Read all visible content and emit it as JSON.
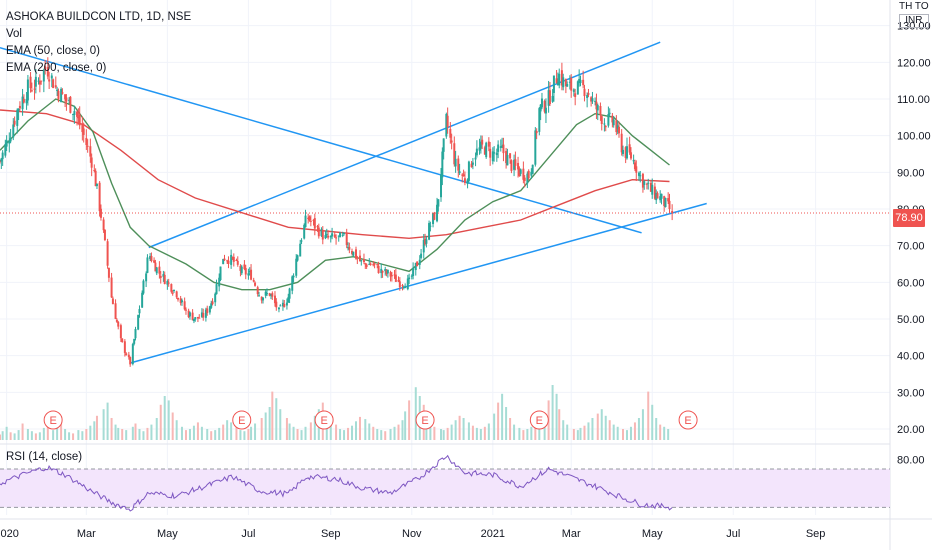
{
  "legend": {
    "symbol": "ASHOKA BUILDCON LTD, 1D, NSE",
    "vol": "Vol",
    "ema50": "EMA (50, close, 0)",
    "ema200": "EMA (200, close, 0)"
  },
  "currency": {
    "top": "TH TO",
    "box": "INR"
  },
  "last_price": "78.90",
  "rsi_title": "RSI (14, close)",
  "colors": {
    "up": "#26a69a",
    "down": "#ef5350",
    "ema50": "#4e8f5a",
    "ema200": "#e04b4b",
    "trendline": "#2196f3",
    "rsi": "#7e57c2",
    "rsi_band": "#f3e5fc",
    "last_line": "#ef5350"
  },
  "chart_data": [
    {
      "type": "candlestick",
      "ylim": [
        17,
        137
      ],
      "yticks": [
        "130.00",
        "120.00",
        "110.00",
        "100.00",
        "90.00",
        "80.00",
        "70.00",
        "60.00",
        "50.00",
        "40.00",
        "30.00",
        "20.00"
      ],
      "ytick_values": [
        130,
        120,
        110,
        100,
        90,
        80,
        70,
        60,
        50,
        40,
        30,
        20
      ],
      "xticks": [
        "2020",
        "Mar",
        "May",
        "Jul",
        "Sep",
        "Nov",
        "2021",
        "Mar",
        "May",
        "Jul",
        "Sep"
      ],
      "xtick_dates": [
        "2020-01-01",
        "2020-03-01",
        "2020-05-01",
        "2020-07-01",
        "2020-09-01",
        "2020-11-01",
        "2021-01-01",
        "2021-03-01",
        "2021-05-01",
        "2021-07-01",
        "2021-09-01"
      ],
      "x_range": [
        "2019-12-27",
        "2021-10-27"
      ],
      "close_series": [
        [
          "2019-12-27",
          93
        ],
        [
          "2020-01-03",
          100
        ],
        [
          "2020-01-10",
          108
        ],
        [
          "2020-01-17",
          113
        ],
        [
          "2020-01-24",
          114
        ],
        [
          "2020-01-31",
          119
        ],
        [
          "2020-02-07",
          113
        ],
        [
          "2020-02-14",
          110
        ],
        [
          "2020-02-21",
          107
        ],
        [
          "2020-02-28",
          100
        ],
        [
          "2020-03-06",
          92
        ],
        [
          "2020-03-13",
          76
        ],
        [
          "2020-03-20",
          56
        ],
        [
          "2020-03-27",
          44
        ],
        [
          "2020-04-03",
          38
        ],
        [
          "2020-04-10",
          53
        ],
        [
          "2020-04-17",
          68
        ],
        [
          "2020-04-24",
          63
        ],
        [
          "2020-05-01",
          60
        ],
        [
          "2020-05-08",
          57
        ],
        [
          "2020-05-15",
          52
        ],
        [
          "2020-05-22",
          50
        ],
        [
          "2020-05-29",
          51
        ],
        [
          "2020-06-05",
          56
        ],
        [
          "2020-06-12",
          67
        ],
        [
          "2020-06-19",
          66
        ],
        [
          "2020-06-26",
          63
        ],
        [
          "2020-07-03",
          62
        ],
        [
          "2020-07-10",
          56
        ],
        [
          "2020-07-17",
          57
        ],
        [
          "2020-07-24",
          52
        ],
        [
          "2020-07-31",
          56
        ],
        [
          "2020-08-07",
          68
        ],
        [
          "2020-08-14",
          78
        ],
        [
          "2020-08-21",
          75
        ],
        [
          "2020-08-28",
          72
        ],
        [
          "2020-09-04",
          72
        ],
        [
          "2020-09-11",
          72
        ],
        [
          "2020-09-18",
          68
        ],
        [
          "2020-09-25",
          65
        ],
        [
          "2020-10-02",
          65
        ],
        [
          "2020-10-09",
          63
        ],
        [
          "2020-10-16",
          62
        ],
        [
          "2020-10-23",
          60
        ],
        [
          "2020-10-30",
          60
        ],
        [
          "2020-11-06",
          66
        ],
        [
          "2020-11-13",
          74
        ],
        [
          "2020-11-20",
          80
        ],
        [
          "2020-11-27",
          104
        ],
        [
          "2020-12-04",
          92
        ],
        [
          "2020-12-11",
          88
        ],
        [
          "2020-12-18",
          95
        ],
        [
          "2020-12-25",
          97
        ],
        [
          "2021-01-01",
          95
        ],
        [
          "2021-01-08",
          96
        ],
        [
          "2021-01-15",
          92
        ],
        [
          "2021-01-22",
          90
        ],
        [
          "2021-01-29",
          89
        ],
        [
          "2021-02-05",
          107
        ],
        [
          "2021-02-12",
          110
        ],
        [
          "2021-02-19",
          117
        ],
        [
          "2021-02-26",
          113
        ],
        [
          "2021-03-05",
          113
        ],
        [
          "2021-03-12",
          113
        ],
        [
          "2021-03-19",
          108
        ],
        [
          "2021-03-26",
          104
        ],
        [
          "2021-04-02",
          104
        ],
        [
          "2021-04-09",
          96
        ],
        [
          "2021-04-16",
          94
        ],
        [
          "2021-04-23",
          88
        ],
        [
          "2021-04-30",
          85
        ],
        [
          "2021-05-07",
          83
        ],
        [
          "2021-05-14",
          80
        ],
        [
          "2021-05-17",
          78.9
        ]
      ],
      "ema50_series": [
        [
          "2019-12-27",
          96
        ],
        [
          "2020-01-17",
          104
        ],
        [
          "2020-02-07",
          110
        ],
        [
          "2020-02-21",
          108
        ],
        [
          "2020-03-06",
          101
        ],
        [
          "2020-03-20",
          87
        ],
        [
          "2020-04-03",
          75
        ],
        [
          "2020-04-17",
          70
        ],
        [
          "2020-05-15",
          65
        ],
        [
          "2020-06-05",
          60
        ],
        [
          "2020-06-26",
          58
        ],
        [
          "2020-07-17",
          58
        ],
        [
          "2020-08-07",
          60
        ],
        [
          "2020-08-28",
          66
        ],
        [
          "2020-09-18",
          67
        ],
        [
          "2020-10-09",
          65
        ],
        [
          "2020-10-30",
          63
        ],
        [
          "2020-11-20",
          69
        ],
        [
          "2020-12-11",
          77
        ],
        [
          "2021-01-01",
          82
        ],
        [
          "2021-01-22",
          85
        ],
        [
          "2021-02-12",
          94
        ],
        [
          "2021-03-05",
          103
        ],
        [
          "2021-03-19",
          106
        ],
        [
          "2021-04-02",
          105
        ],
        [
          "2021-04-16",
          100
        ],
        [
          "2021-04-30",
          96
        ],
        [
          "2021-05-14",
          92
        ]
      ],
      "ema200_series": [
        [
          "2019-12-27",
          107
        ],
        [
          "2020-01-31",
          106
        ],
        [
          "2020-02-28",
          103
        ],
        [
          "2020-03-27",
          96
        ],
        [
          "2020-04-24",
          88
        ],
        [
          "2020-05-22",
          83
        ],
        [
          "2020-06-26",
          79
        ],
        [
          "2020-07-31",
          75
        ],
        [
          "2020-08-28",
          74
        ],
        [
          "2020-09-25",
          73
        ],
        [
          "2020-10-30",
          72
        ],
        [
          "2020-11-27",
          73
        ],
        [
          "2020-12-25",
          75
        ],
        [
          "2021-01-22",
          77
        ],
        [
          "2021-02-19",
          81
        ],
        [
          "2021-03-19",
          85
        ],
        [
          "2021-04-16",
          88
        ],
        [
          "2021-05-14",
          87.5
        ]
      ],
      "trendlines": [
        {
          "from": [
            "2019-12-27",
            124
          ],
          "to": [
            "2021-04-23",
            73.5
          ]
        },
        {
          "from": [
            "2020-04-03",
            38
          ],
          "to": [
            "2021-06-11",
            81.5
          ]
        },
        {
          "from": [
            "2020-04-17",
            69.5
          ],
          "to": [
            "2021-05-07",
            125.5
          ]
        }
      ],
      "volume": {
        "ylim": [
          0,
          100
        ],
        "values": [
          5,
          8,
          12,
          7,
          6,
          9,
          15,
          10,
          8,
          6,
          7,
          11,
          14,
          9,
          12,
          18,
          10,
          7,
          6,
          9,
          8,
          10,
          13,
          17,
          22,
          28,
          34,
          20,
          14,
          11,
          10,
          9,
          12,
          15,
          10,
          8,
          11,
          14,
          20,
          32,
          40,
          36,
          25,
          18,
          12,
          9,
          10,
          13,
          16,
          12,
          10,
          8,
          9,
          11,
          14,
          18,
          16,
          12,
          9,
          8,
          10,
          12,
          15,
          20,
          25,
          30,
          44,
          38,
          28,
          20,
          15,
          12,
          10,
          9,
          12,
          16,
          22,
          28,
          34,
          26,
          18,
          14,
          10,
          9,
          11,
          13,
          17,
          21,
          19,
          15,
          12,
          10,
          9,
          8,
          10,
          12,
          14,
          18,
          26,
          36,
          48,
          40,
          32,
          22,
          16,
          12,
          10,
          9,
          11,
          14,
          18,
          22,
          20,
          16,
          13,
          11,
          10,
          12,
          15,
          24,
          34,
          42,
          30,
          20,
          14,
          11,
          9,
          10,
          12,
          15,
          18,
          22,
          36,
          50,
          42,
          28,
          18,
          14,
          10,
          9,
          11,
          13,
          16,
          20,
          24,
          28,
          22,
          18,
          14,
          12,
          10,
          9,
          12,
          16,
          20,
          28,
          44,
          32,
          20,
          14,
          12,
          10
        ]
      },
      "earnings_markers": [
        "2020-02-05",
        "2020-06-26",
        "2020-08-27",
        "2020-11-11",
        "2021-02-05",
        "2021-05-28"
      ],
      "earnings_label": "E"
    },
    {
      "type": "line",
      "title": "RSI (14, close)",
      "ylim": [
        22,
        92
      ],
      "yticks": [
        "80.00"
      ],
      "ytick_values": [
        80
      ],
      "band": [
        30,
        70
      ],
      "x": [
        "2019-12-27",
        "2020-01-17",
        "2020-01-31",
        "2020-02-14",
        "2020-03-06",
        "2020-03-20",
        "2020-04-03",
        "2020-04-17",
        "2020-05-08",
        "2020-06-05",
        "2020-06-19",
        "2020-07-10",
        "2020-07-31",
        "2020-08-14",
        "2020-09-04",
        "2020-09-25",
        "2020-10-16",
        "2020-11-06",
        "2020-11-27",
        "2020-12-11",
        "2021-01-01",
        "2021-01-22",
        "2021-02-12",
        "2021-02-26",
        "2021-03-19",
        "2021-04-09",
        "2021-04-23",
        "2021-05-17"
      ],
      "values": [
        55,
        66,
        72,
        64,
        46,
        35,
        28,
        45,
        42,
        55,
        62,
        47,
        44,
        62,
        60,
        50,
        45,
        60,
        84,
        66,
        64,
        52,
        70,
        63,
        52,
        40,
        33,
        30
      ]
    }
  ]
}
